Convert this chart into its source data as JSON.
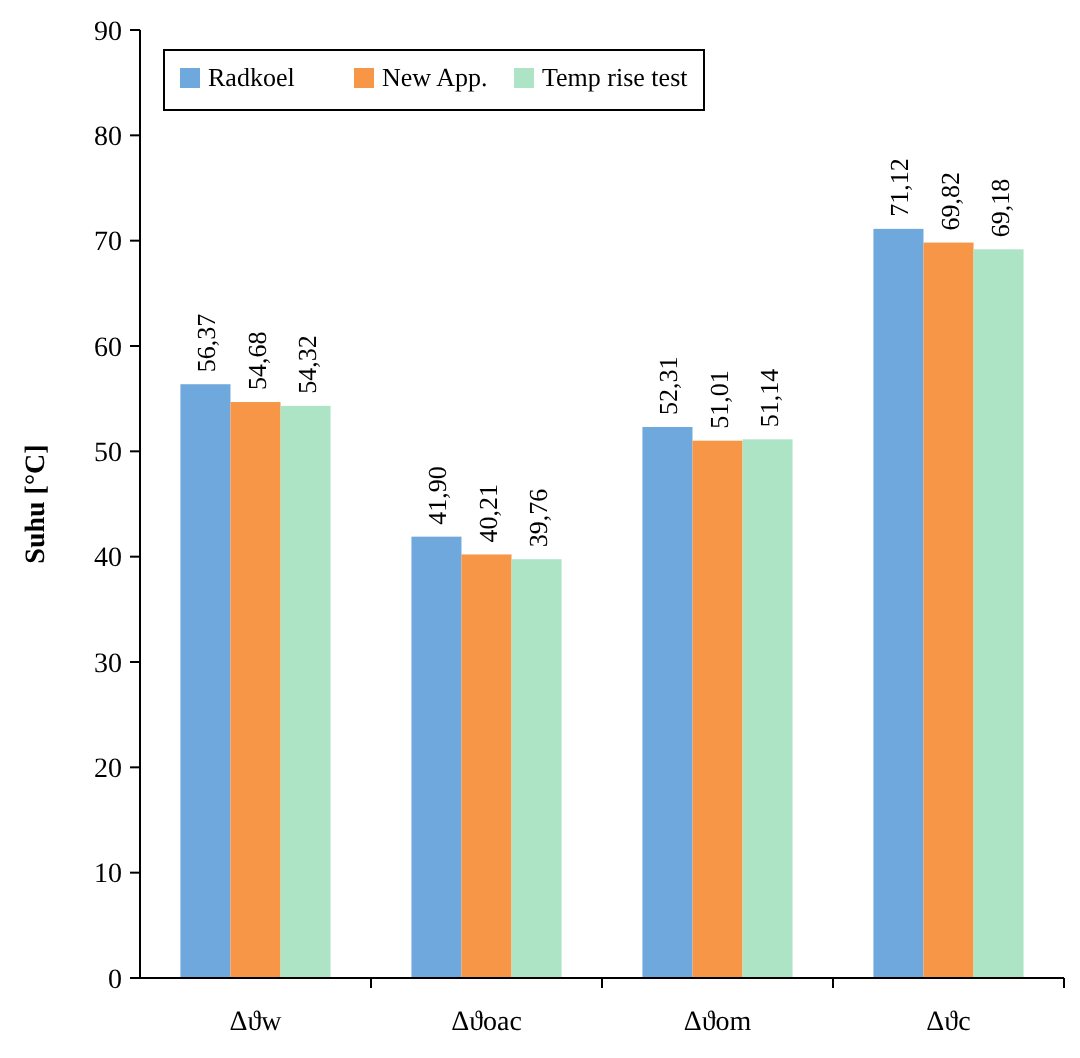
{
  "chart_data": {
    "type": "bar",
    "ylabel": "Suhu [°C]",
    "categories": [
      "Δϑw",
      "Δϑoac",
      "Δϑom",
      "Δϑc"
    ],
    "series": [
      {
        "name": "Radkoel",
        "color": "#6fa8dc",
        "values": [
          56.37,
          41.9,
          52.31,
          71.12
        ],
        "value_labels": [
          "56,37",
          "41,90",
          "52,31",
          "71,12"
        ]
      },
      {
        "name": "New App.",
        "color": "#f79646",
        "values": [
          54.68,
          40.21,
          51.01,
          69.82
        ],
        "value_labels": [
          "54,68",
          "40,21",
          "51,01",
          "69,82"
        ]
      },
      {
        "name": "Temp rise test",
        "color": "#ade4c6",
        "values": [
          54.32,
          39.76,
          51.14,
          69.18
        ],
        "value_labels": [
          "54,32",
          "39,76",
          "51,14",
          "69,18"
        ]
      }
    ],
    "ylim": [
      0,
      90
    ],
    "yticks": [
      0,
      10,
      20,
      30,
      40,
      50,
      60,
      70,
      80,
      90
    ],
    "grid": false,
    "legend": "top left"
  }
}
